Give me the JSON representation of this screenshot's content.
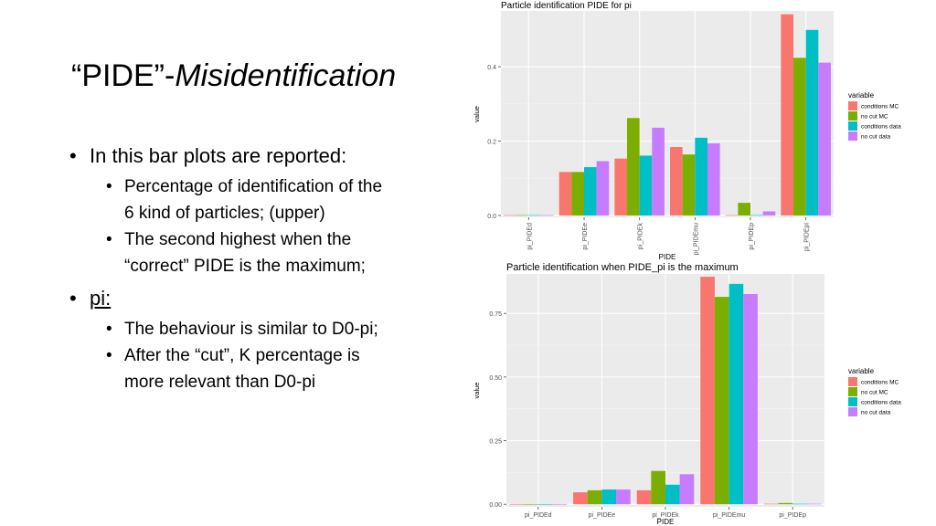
{
  "slide": {
    "title_main": "“PIDE”-",
    "title_italic": "Misidentification",
    "bullets": [
      {
        "text": "In this bar plots are reported:",
        "subs": [
          {
            "line1": "Percentage of identification of the",
            "line2": "6 kind of particles; (upper)"
          },
          {
            "line1": "The second highest when the",
            "line2": "“correct” PIDE is the maximum;"
          }
        ]
      },
      {
        "text": "pi:",
        "subs": [
          {
            "line1": "The behaviour is similar to D0-pi;",
            "line2": ""
          },
          {
            "line1": "After the “cut”, K percentage is",
            "line2": "more relevant than D0-pi"
          }
        ]
      }
    ]
  },
  "colors": {
    "panel": "#ebebeb",
    "grid_major": "#ffffff",
    "grid_minor": "#f5f5f5",
    "conditions_mc": "#f8766d",
    "no_cut_mc": "#7cae00",
    "conditions_data": "#00bfc4",
    "no_cut_data": "#c77cff"
  },
  "chart_data": [
    {
      "type": "bar",
      "title": "Particle identification PIDE for pi",
      "xlabel": "PIDE",
      "ylabel": "value",
      "categories": [
        "pi_PIDEd",
        "pi_PIDEe",
        "pi_PIDEk",
        "pi_PIDEmu",
        "pi_PIDEp",
        "pi_PIDEpi"
      ],
      "yticks": [
        0.0,
        0.2,
        0.4
      ],
      "ytick_labels": [
        "0.0",
        "0.2",
        "0.4"
      ],
      "ylim": [
        -0.005,
        0.55
      ],
      "legend_title": "variable",
      "legend_position": "right",
      "series": [
        {
          "name": "conditions MC",
          "values": [
            0.001,
            0.117,
            0.153,
            0.184,
            0.001,
            0.541
          ]
        },
        {
          "name": "no cut MC",
          "values": [
            0.001,
            0.117,
            0.262,
            0.164,
            0.034,
            0.424
          ]
        },
        {
          "name": "conditions data",
          "values": [
            0.001,
            0.13,
            0.161,
            0.209,
            0.001,
            0.499
          ]
        },
        {
          "name": "no cut data",
          "values": [
            0.001,
            0.146,
            0.236,
            0.194,
            0.011,
            0.411
          ]
        }
      ]
    },
    {
      "type": "bar",
      "title": "Particle identification when PIDE_pi is the maximum",
      "xlabel": "PIDE",
      "ylabel": "value",
      "categories": [
        "pi_PIDEd",
        "pi_PIDEe",
        "pi_PIDEk",
        "pi_PIDEmu",
        "pi_PIDEp"
      ],
      "yticks": [
        0.0,
        0.25,
        0.5,
        0.75
      ],
      "ytick_labels": [
        "0.00",
        "0.25",
        "0.50",
        "0.75"
      ],
      "ylim": [
        -0.01,
        0.905
      ],
      "legend_title": "variable",
      "legend_position": "right",
      "series": [
        {
          "name": "conditions MC",
          "values": [
            0.001,
            0.047,
            0.055,
            0.894,
            0.002
          ]
        },
        {
          "name": "no cut MC",
          "values": [
            0.001,
            0.055,
            0.131,
            0.815,
            0.005
          ]
        },
        {
          "name": "conditions data",
          "values": [
            0.001,
            0.058,
            0.077,
            0.866,
            0.002
          ]
        },
        {
          "name": "no cut data",
          "values": [
            0.001,
            0.058,
            0.118,
            0.826,
            0.002
          ]
        }
      ]
    }
  ]
}
